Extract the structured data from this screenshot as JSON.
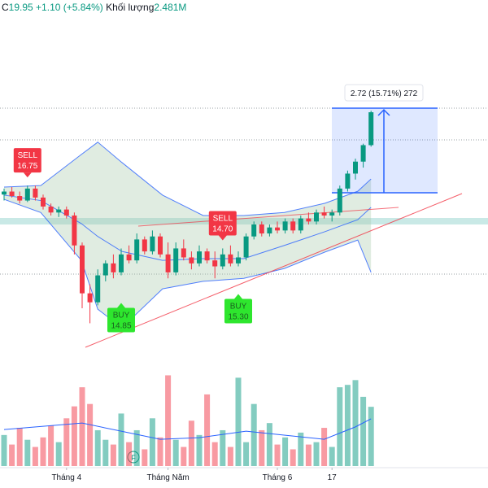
{
  "chart_data": {
    "type": "candlestick",
    "header": {
      "prefix": "C",
      "close": 19.95,
      "change": "+1.10 (+5.84%)",
      "volume_title": "Khối lượng",
      "volume": "2.481M"
    },
    "ylim": [
      11.2,
      23.7
    ],
    "vlim": [
      0,
      3.85
    ],
    "up_color": "#089981",
    "down_color": "#f23645",
    "candles": [
      [
        17.2,
        17.4,
        17.0,
        17.3
      ],
      [
        17.3,
        17.45,
        17.1,
        17.15
      ],
      [
        17.15,
        17.3,
        16.9,
        17.0
      ],
      [
        17.0,
        17.5,
        16.95,
        17.4
      ],
      [
        17.4,
        17.5,
        17.0,
        17.1
      ],
      [
        17.1,
        17.2,
        16.7,
        16.8
      ],
      [
        16.8,
        16.9,
        16.5,
        16.6
      ],
      [
        16.6,
        16.8,
        16.45,
        16.7
      ],
      [
        16.7,
        16.8,
        16.4,
        16.5
      ],
      [
        16.5,
        16.6,
        15.2,
        15.5
      ],
      [
        15.5,
        15.6,
        13.4,
        13.9
      ],
      [
        13.9,
        14.2,
        12.9,
        13.6
      ],
      [
        13.6,
        14.7,
        13.5,
        14.5
      ],
      [
        14.5,
        15.0,
        14.3,
        14.9
      ],
      [
        14.9,
        15.2,
        14.4,
        14.6
      ],
      [
        14.6,
        15.4,
        14.5,
        15.2
      ],
      [
        15.2,
        15.5,
        14.9,
        15.0
      ],
      [
        15.0,
        15.9,
        14.9,
        15.7
      ],
      [
        15.7,
        15.8,
        15.2,
        15.3
      ],
      [
        15.3,
        16.0,
        15.2,
        15.8
      ],
      [
        15.8,
        15.9,
        15.1,
        15.2
      ],
      [
        15.2,
        15.6,
        14.4,
        14.6
      ],
      [
        14.6,
        15.6,
        14.5,
        15.4
      ],
      [
        15.4,
        15.7,
        15.0,
        15.1
      ],
      [
        15.1,
        15.3,
        14.7,
        14.9
      ],
      [
        14.9,
        15.5,
        14.8,
        15.3
      ],
      [
        15.3,
        15.4,
        14.9,
        15.0
      ],
      [
        15.0,
        15.3,
        14.4,
        14.8
      ],
      [
        14.8,
        15.4,
        14.7,
        15.2
      ],
      [
        15.2,
        15.5,
        14.8,
        14.9
      ],
      [
        14.9,
        15.3,
        14.8,
        15.1
      ],
      [
        15.1,
        15.9,
        15.0,
        15.8
      ],
      [
        15.8,
        16.3,
        15.7,
        16.2
      ],
      [
        16.2,
        16.3,
        15.8,
        15.9
      ],
      [
        15.9,
        16.2,
        15.8,
        16.1
      ],
      [
        16.1,
        16.3,
        15.9,
        16.0
      ],
      [
        16.0,
        16.4,
        15.9,
        16.3
      ],
      [
        16.3,
        16.4,
        15.9,
        16.0
      ],
      [
        16.0,
        16.5,
        15.9,
        16.4
      ],
      [
        16.4,
        16.6,
        16.2,
        16.3
      ],
      [
        16.3,
        16.7,
        16.2,
        16.6
      ],
      [
        16.6,
        16.8,
        16.4,
        16.5
      ],
      [
        16.5,
        16.7,
        16.3,
        16.6
      ],
      [
        16.6,
        17.5,
        16.5,
        17.4
      ],
      [
        17.4,
        18.0,
        17.3,
        17.9
      ],
      [
        17.9,
        18.4,
        17.7,
        18.3
      ],
      [
        18.3,
        18.9,
        18.1,
        18.85
      ],
      [
        18.85,
        20.0,
        18.8,
        19.95
      ]
    ],
    "volumes": [
      1.3,
      0.9,
      1.6,
      1.1,
      0.8,
      1.2,
      1.7,
      1.0,
      2.0,
      2.5,
      3.3,
      2.6,
      1.5,
      1.1,
      0.9,
      2.2,
      1.0,
      1.5,
      0.7,
      2.0,
      1.2,
      3.8,
      1.1,
      0.8,
      1.9,
      1.3,
      3.0,
      1.0,
      1.5,
      0.8,
      3.7,
      1.0,
      2.6,
      1.5,
      1.8,
      0.9,
      1.2,
      0.7,
      1.4,
      0.9,
      1.0,
      1.6,
      0.8,
      3.3,
      3.4,
      3.6,
      2.9,
      2.481
    ],
    "bands": {
      "x": [
        0,
        4.7,
        9.9,
        12,
        15.1,
        20.3,
        25.5,
        30.7,
        35.9,
        41.1,
        45.3,
        47
      ],
      "upper": [
        17.45,
        17.5,
        18.54,
        18.95,
        18.27,
        17.18,
        16.5,
        16.5,
        16.6,
        16.91,
        17.31,
        17.72
      ],
      "middle": [
        17.18,
        17.0,
        16.23,
        15.8,
        15.3,
        15.0,
        15.06,
        15.06,
        15.5,
        15.96,
        16.36,
        16.77
      ],
      "lower": [
        17.04,
        16.6,
        15.0,
        13.37,
        12.75,
        14.05,
        14.3,
        14.4,
        14.73,
        15.28,
        15.68,
        14.6
      ]
    },
    "volume_ma": {
      "x": [
        0,
        10,
        15,
        20,
        25,
        31,
        36,
        41,
        45,
        47
      ],
      "values": [
        1.53,
        1.8,
        1.46,
        1.12,
        1.19,
        1.46,
        1.29,
        1.12,
        1.64,
        1.98
      ]
    },
    "signals": [
      {
        "type": "SELL",
        "price": 16.75,
        "index": 3
      },
      {
        "type": "BUY",
        "price": 14.85,
        "index": 15
      },
      {
        "type": "SELL",
        "price": {
          "value": 14.7,
          "label": "14.70"
        },
        "index": 28
      },
      {
        "type": "BUY",
        "price": {
          "value": 15.3,
          "label": "15.30"
        },
        "index": 30
      }
    ],
    "measure_label": "2.72 (15.71%) 272",
    "xticks": [
      {
        "value": 8,
        "label": "Tháng 4"
      },
      {
        "value": 21,
        "label": "Tháng Năm"
      },
      {
        "value": 35,
        "label": "Tháng 6"
      },
      {
        "value": 42,
        "label": "17"
      }
    ]
  }
}
